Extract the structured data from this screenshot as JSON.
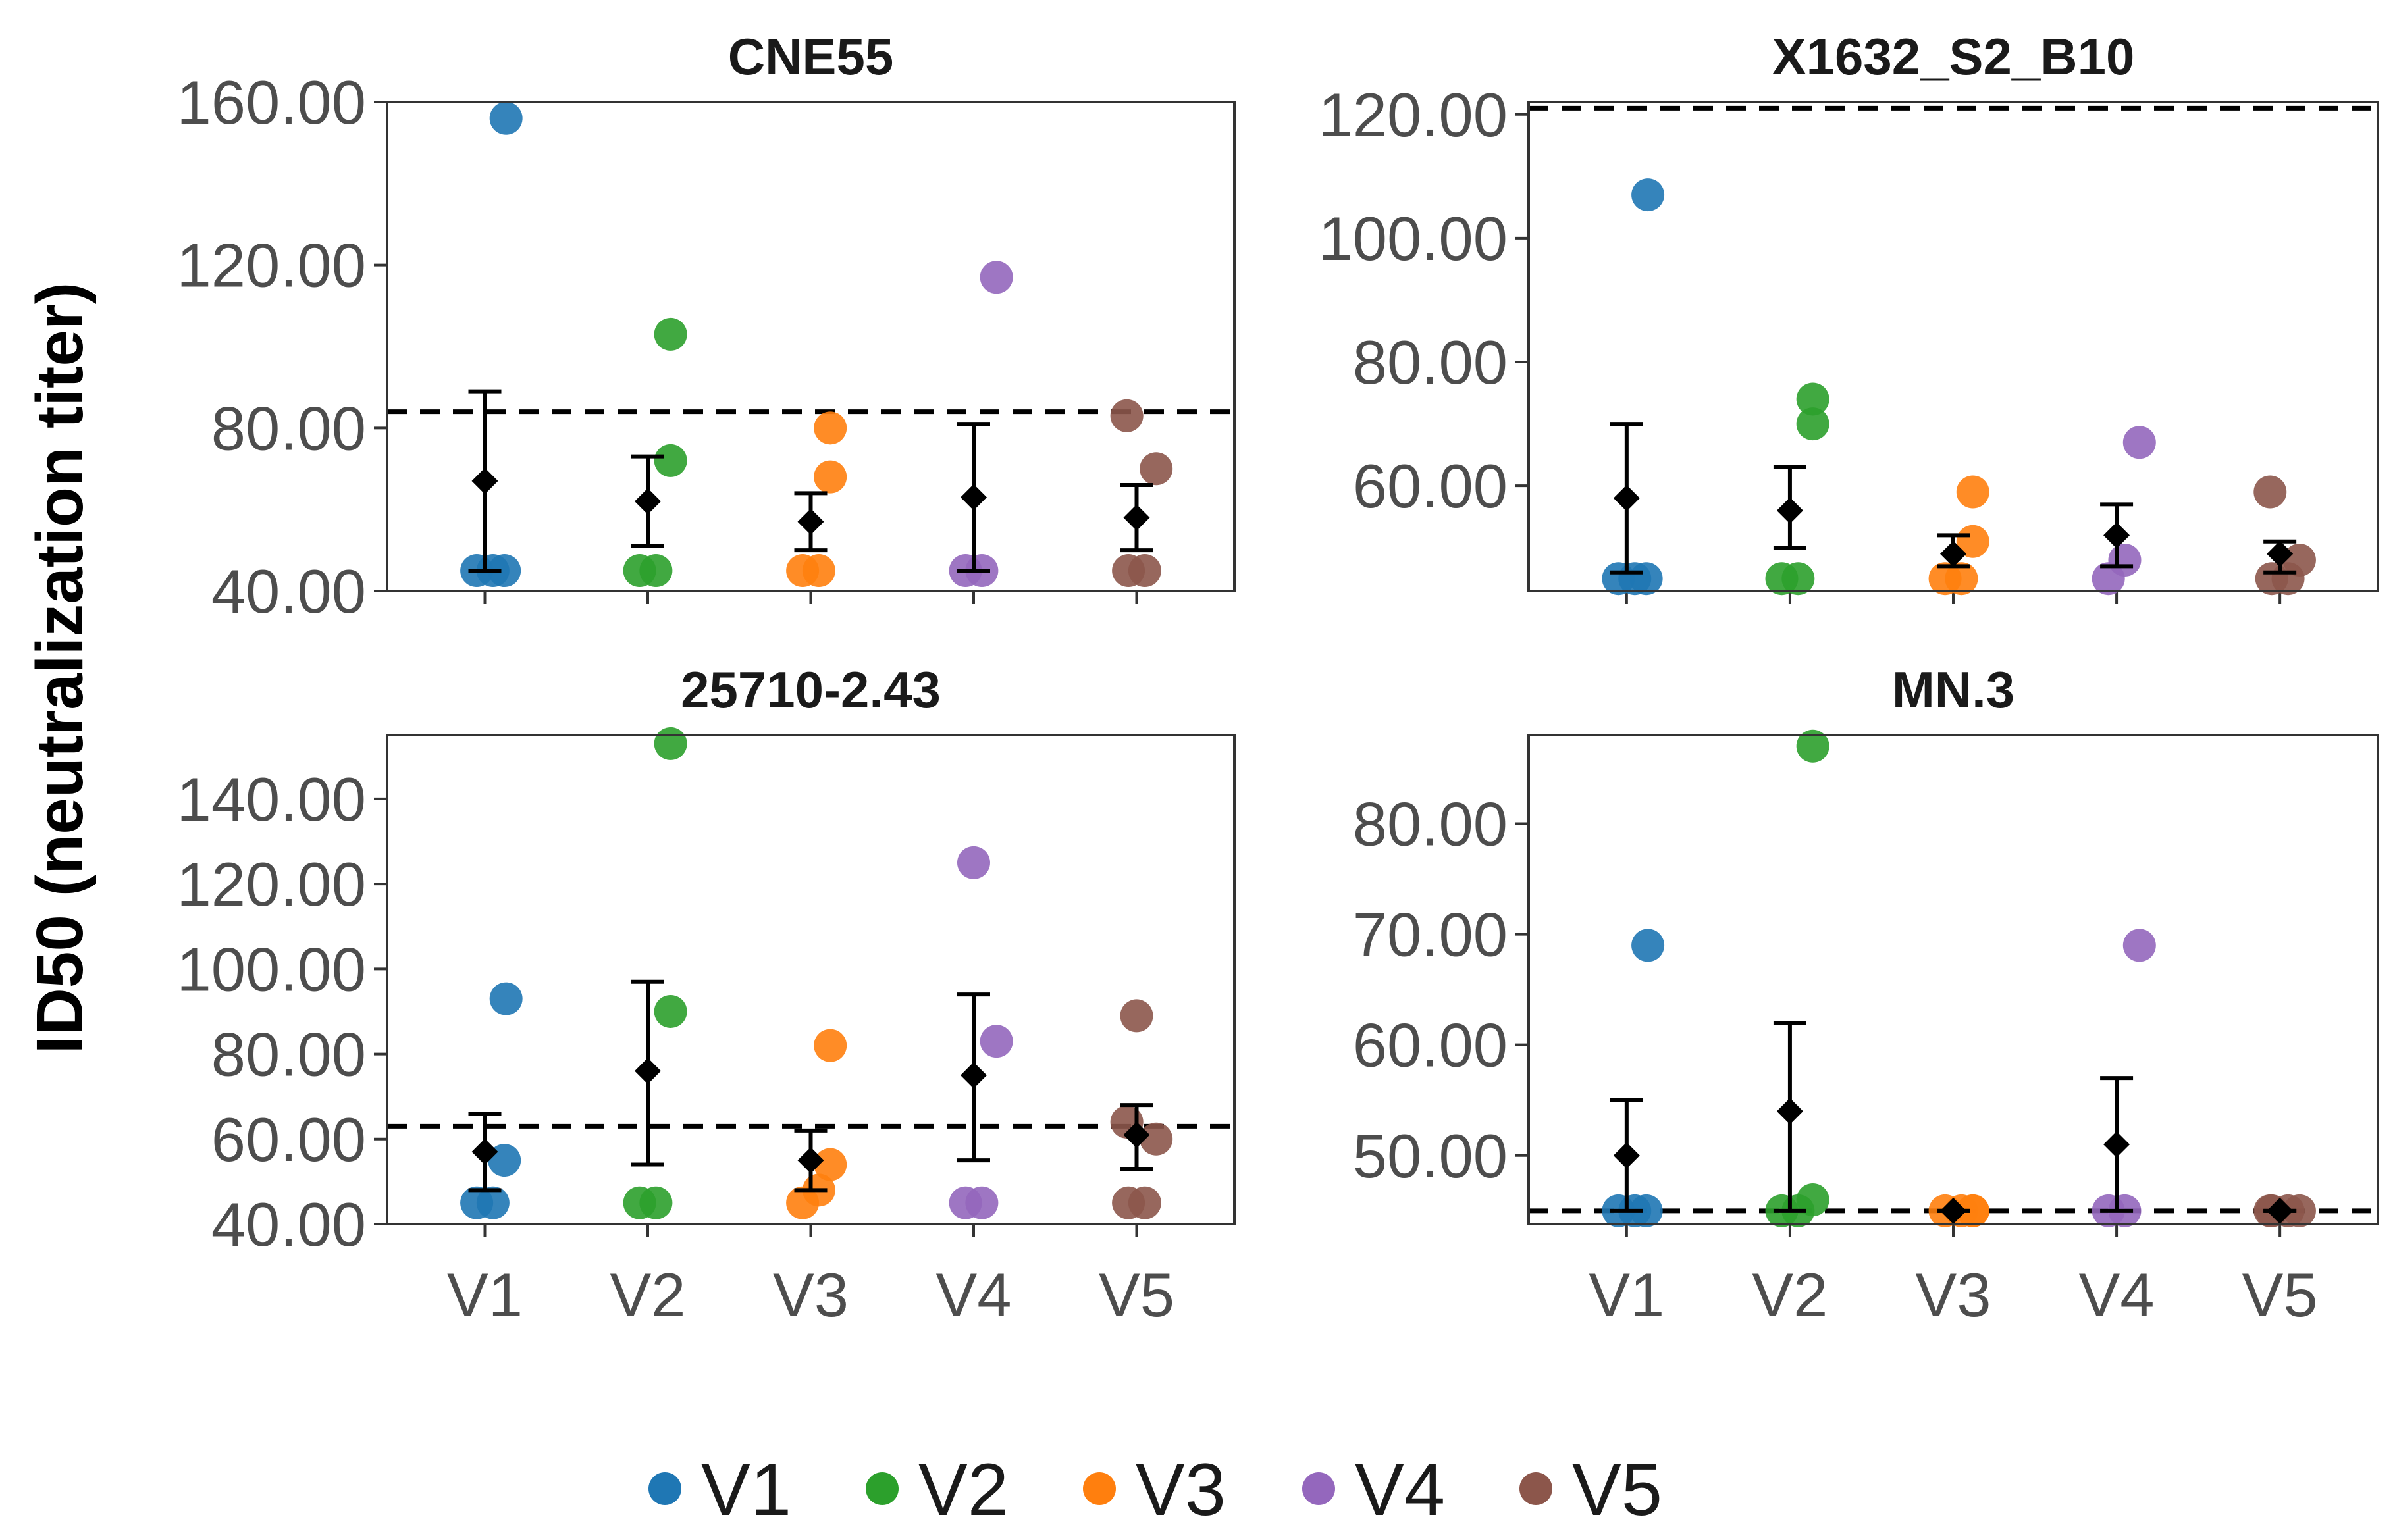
{
  "figure": {
    "ylabel": "ID50 (neutralization titer)",
    "colors": {
      "V1": "#1f77b4",
      "V2": "#2ca02c",
      "V3": "#ff7f0e",
      "V4": "#9467bd",
      "V5": "#8c564b"
    }
  },
  "legend": {
    "entries": [
      {
        "label": "V1",
        "color": "#1f77b4"
      },
      {
        "label": "V2",
        "color": "#2ca02c"
      },
      {
        "label": "V3",
        "color": "#ff7f0e"
      },
      {
        "label": "V4",
        "color": "#9467bd"
      },
      {
        "label": "V5",
        "color": "#8c564b"
      }
    ]
  },
  "chart_data": [
    {
      "type": "scatter",
      "title": "CNE55",
      "categories": [
        "V1",
        "V2",
        "V3",
        "V4",
        "V5"
      ],
      "ylim": [
        40,
        160
      ],
      "yticks": [
        40,
        80,
        120,
        160
      ],
      "ytick_labels": [
        "40.00",
        "80.00",
        "120.00",
        "160.00"
      ],
      "threshold": 84,
      "series": [
        {
          "values": [
            45,
            45,
            45,
            156
          ]
        },
        {
          "values": [
            45,
            45,
            72,
            103
          ]
        },
        {
          "values": [
            45,
            45,
            68,
            80
          ]
        },
        {
          "values": [
            45,
            45,
            117
          ]
        },
        {
          "values": [
            45,
            45,
            70,
            83
          ]
        }
      ],
      "summary": [
        {
          "mean": 67,
          "low": 45,
          "high": 89
        },
        {
          "mean": 62,
          "low": 51,
          "high": 73
        },
        {
          "mean": 57,
          "low": 50,
          "high": 64
        },
        {
          "mean": 63,
          "low": 45,
          "high": 81
        },
        {
          "mean": 58,
          "low": 50,
          "high": 66
        }
      ]
    },
    {
      "type": "scatter",
      "title": "X1632_S2_B10",
      "categories": [
        "V1",
        "V2",
        "V3",
        "V4",
        "V5"
      ],
      "ylim": [
        43,
        122
      ],
      "yticks": [
        60,
        80,
        100,
        120
      ],
      "ytick_labels": [
        "60.00",
        "80.00",
        "100.00",
        "120.00"
      ],
      "threshold": 121,
      "series": [
        {
          "values": [
            45,
            45,
            45,
            107
          ]
        },
        {
          "values": [
            45,
            45,
            70,
            74
          ]
        },
        {
          "values": [
            45,
            45,
            51,
            59
          ]
        },
        {
          "values": [
            45,
            48,
            67
          ]
        },
        {
          "values": [
            45,
            45,
            48,
            59
          ]
        }
      ],
      "summary": [
        {
          "mean": 58,
          "low": 46,
          "high": 70
        },
        {
          "mean": 56,
          "low": 50,
          "high": 63
        },
        {
          "mean": 49,
          "low": 47,
          "high": 52
        },
        {
          "mean": 52,
          "low": 47,
          "high": 57
        },
        {
          "mean": 49,
          "low": 46,
          "high": 51
        }
      ]
    },
    {
      "type": "scatter",
      "title": "25710-2.43",
      "categories": [
        "V1",
        "V2",
        "V3",
        "V4",
        "V5"
      ],
      "ylim": [
        40,
        155
      ],
      "yticks": [
        40,
        60,
        80,
        100,
        120,
        140
      ],
      "ytick_labels": [
        "40.00",
        "60.00",
        "80.00",
        "100.00",
        "120.00",
        "140.00"
      ],
      "threshold": 63,
      "series": [
        {
          "values": [
            45,
            45,
            55,
            93
          ]
        },
        {
          "values": [
            45,
            45,
            90,
            153
          ]
        },
        {
          "values": [
            45,
            48,
            54,
            82
          ]
        },
        {
          "values": [
            45,
            45,
            83,
            125
          ]
        },
        {
          "values": [
            45,
            45,
            60,
            64,
            89
          ]
        }
      ],
      "summary": [
        {
          "mean": 57,
          "low": 48,
          "high": 66
        },
        {
          "mean": 76,
          "low": 54,
          "high": 97
        },
        {
          "mean": 55,
          "low": 48,
          "high": 62
        },
        {
          "mean": 75,
          "low": 55,
          "high": 94
        },
        {
          "mean": 61,
          "low": 53,
          "high": 68
        }
      ]
    },
    {
      "type": "scatter",
      "title": "MN.3",
      "categories": [
        "V1",
        "V2",
        "V3",
        "V4",
        "V5"
      ],
      "ylim": [
        43.8,
        88
      ],
      "yticks": [
        50,
        60,
        70,
        80
      ],
      "ytick_labels": [
        "50.00",
        "60.00",
        "70.00",
        "80.00"
      ],
      "threshold": 45,
      "series": [
        {
          "values": [
            45,
            45,
            45,
            69
          ]
        },
        {
          "values": [
            45,
            45,
            46,
            87
          ]
        },
        {
          "values": [
            45,
            45,
            45,
            45
          ]
        },
        {
          "values": [
            45,
            45,
            69
          ]
        },
        {
          "values": [
            45,
            45,
            45,
            45
          ]
        }
      ],
      "summary": [
        {
          "mean": 50,
          "low": 45,
          "high": 55
        },
        {
          "mean": 54,
          "low": 45,
          "high": 62
        },
        {
          "mean": 45,
          "low": 45,
          "high": 45
        },
        {
          "mean": 51,
          "low": 45,
          "high": 57
        },
        {
          "mean": 45,
          "low": 45,
          "high": 45
        }
      ]
    }
  ]
}
